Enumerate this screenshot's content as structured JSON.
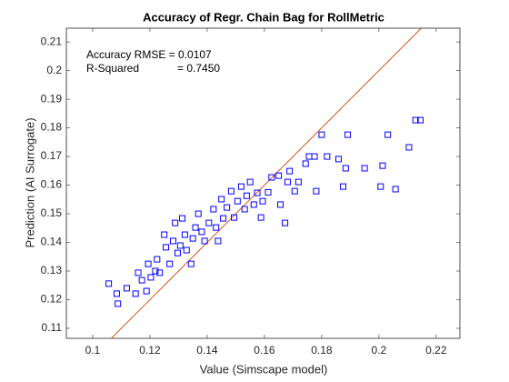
{
  "chart_data": {
    "type": "scatter",
    "title": "Accuracy of Regr. Chain Bag for RollMetric",
    "x_label": "Value (Simscape model)",
    "y_label": "Prediction (AI Surrogate)",
    "annotations": [
      "Accuracy RMSE = 0.0107",
      "R-Squared",
      "= 0.7450"
    ],
    "xlim": [
      0.0908,
      0.2283
    ],
    "ylim": [
      0.1065,
      0.2148
    ],
    "xticks": [
      0.1,
      0.12,
      0.14,
      0.16,
      0.18,
      0.2,
      0.22
    ],
    "yticks": [
      0.11,
      0.12,
      0.13,
      0.14,
      0.15,
      0.16,
      0.17,
      0.18,
      0.19,
      0.2,
      0.21
    ],
    "series": [
      {
        "color": "#0000ff",
        "x": [
          0.1056,
          0.1084,
          0.1088,
          0.1119,
          0.115,
          0.1159,
          0.1172,
          0.1188,
          0.1194,
          0.1203,
          0.1219,
          0.1225,
          0.1234,
          0.125,
          0.1256,
          0.1269,
          0.1281,
          0.1288,
          0.1297,
          0.1306,
          0.1313,
          0.1322,
          0.1328,
          0.1344,
          0.135,
          0.1359,
          0.1369,
          0.1381,
          0.1391,
          0.1406,
          0.1422,
          0.1431,
          0.1438,
          0.145,
          0.1456,
          0.1469,
          0.1484,
          0.1494,
          0.1506,
          0.1519,
          0.1531,
          0.1538,
          0.155,
          0.1563,
          0.1575,
          0.1588,
          0.1594,
          0.1613,
          0.1625,
          0.165,
          0.1656,
          0.1672,
          0.1681,
          0.1688,
          0.1706,
          0.1719,
          0.1744,
          0.1756,
          0.1775,
          0.1781,
          0.18,
          0.1819,
          0.1859,
          0.1875,
          0.1891,
          0.1884,
          0.195,
          0.2006,
          0.2013,
          0.2031,
          0.2105,
          0.2128,
          0.2058,
          0.2145
        ],
        "values": [
          0.1256,
          0.1221,
          0.1186,
          0.124,
          0.1221,
          0.1294,
          0.1268,
          0.123,
          0.1325,
          0.1278,
          0.13,
          0.1341,
          0.1294,
          0.1427,
          0.1383,
          0.1325,
          0.1405,
          0.1468,
          0.1363,
          0.1389,
          0.1484,
          0.1427,
          0.1373,
          0.1325,
          0.1414,
          0.1452,
          0.15,
          0.1437,
          0.1405,
          0.1468,
          0.1516,
          0.1452,
          0.1405,
          0.1551,
          0.1484,
          0.1522,
          0.1579,
          0.1487,
          0.1544,
          0.1595,
          0.1516,
          0.1563,
          0.1611,
          0.1532,
          0.1573,
          0.1487,
          0.1544,
          0.1575,
          0.1627,
          0.1633,
          0.1532,
          0.1468,
          0.1611,
          0.1649,
          0.1579,
          0.1611,
          0.1675,
          0.17,
          0.17,
          0.1579,
          0.1776,
          0.17,
          0.1691,
          0.1595,
          0.1776,
          0.1659,
          0.1659,
          0.1595,
          0.1668,
          0.1776,
          0.1732,
          0.1827,
          0.1586,
          0.1827
        ]
      }
    ],
    "reference_line": {
      "color": "#d95319",
      "x": [
        0.1065,
        0.2148
      ],
      "values": [
        0.1065,
        0.2148
      ]
    }
  }
}
